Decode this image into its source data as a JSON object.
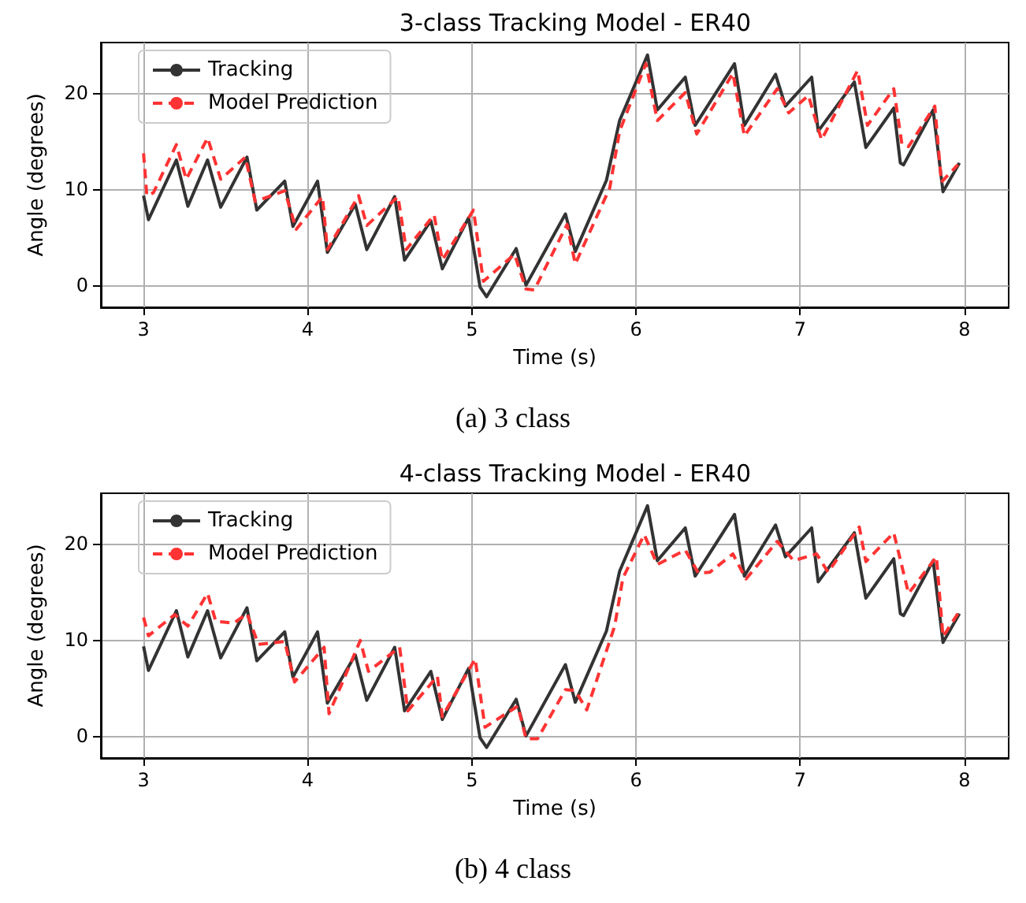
{
  "chart_data": [
    {
      "type": "line",
      "title": "3-class Tracking Model - ER40",
      "xlabel": "Time (s)",
      "ylabel": "Angle (degrees)",
      "annotations": [
        "(a) 3 class"
      ],
      "xlim": [
        2.74,
        8.27
      ],
      "ylim": [
        -2.3,
        25.2
      ],
      "xticks": [
        3,
        4,
        5,
        6,
        7,
        8
      ],
      "yticks": [
        0,
        10,
        20
      ],
      "grid": true,
      "legend": "top left",
      "marker": "none",
      "series": [
        {
          "name": "Tracking",
          "color": "#333333",
          "line_style": "solid",
          "x": [
            3.0,
            3.03,
            3.2,
            3.27,
            3.39,
            3.47,
            3.63,
            3.69,
            3.86,
            3.91,
            4.06,
            4.12,
            4.29,
            4.36,
            4.53,
            4.59,
            4.75,
            4.82,
            4.98,
            5.05,
            5.09,
            5.27,
            5.33,
            5.57,
            5.63,
            5.82,
            5.9,
            6.07,
            6.13,
            6.3,
            6.36,
            6.6,
            6.66,
            6.85,
            6.91,
            7.07,
            7.11,
            7.33,
            7.4,
            7.57,
            7.61,
            7.63,
            7.81,
            7.87,
            7.97
          ],
          "values": [
            9.3,
            6.8,
            13.0,
            8.2,
            13.0,
            8.1,
            13.3,
            7.8,
            10.8,
            6.1,
            10.8,
            3.4,
            8.4,
            3.7,
            9.2,
            2.6,
            6.7,
            1.7,
            7.0,
            -0.2,
            -1.2,
            3.8,
            0.0,
            7.4,
            3.5,
            10.9,
            17.1,
            23.9,
            18.2,
            21.6,
            16.6,
            23.0,
            16.6,
            21.9,
            18.6,
            21.6,
            16.0,
            21.1,
            14.3,
            18.4,
            12.7,
            12.5,
            18.2,
            9.7,
            12.7
          ]
        },
        {
          "name": "Model Prediction",
          "color": "#ff3333",
          "line_style": "dashed",
          "x": [
            3.0,
            3.02,
            3.06,
            3.2,
            3.26,
            3.39,
            3.47,
            3.62,
            3.68,
            3.86,
            3.93,
            4.09,
            4.12,
            4.31,
            4.36,
            4.55,
            4.6,
            4.77,
            4.82,
            5.01,
            5.07,
            5.26,
            5.33,
            5.38,
            5.58,
            5.63,
            5.84,
            5.9,
            6.06,
            6.13,
            6.3,
            6.37,
            6.59,
            6.66,
            6.86,
            6.93,
            7.05,
            7.13,
            7.35,
            7.41,
            7.57,
            7.62,
            7.66,
            7.82,
            7.86,
            7.96
          ],
          "values": [
            13.7,
            9.3,
            9.6,
            14.6,
            11.0,
            15.3,
            11.0,
            13.3,
            8.7,
            9.8,
            5.8,
            9.2,
            3.7,
            9.3,
            6.2,
            9.2,
            3.7,
            7.3,
            2.6,
            7.8,
            0.4,
            3.2,
            -0.4,
            -0.5,
            6.3,
            2.2,
            10.1,
            16.0,
            23.0,
            17.1,
            20.0,
            15.7,
            22.0,
            15.5,
            20.4,
            17.9,
            19.7,
            15.1,
            22.3,
            16.6,
            20.4,
            14.6,
            14.4,
            18.6,
            10.7,
            12.5
          ]
        }
      ]
    },
    {
      "type": "line",
      "title": "4-class Tracking Model - ER40",
      "xlabel": "Time (s)",
      "ylabel": "Angle (degrees)",
      "annotations": [
        "(b) 4 class"
      ],
      "xlim": [
        2.74,
        8.27
      ],
      "ylim": [
        -2.3,
        25.2
      ],
      "xticks": [
        3,
        4,
        5,
        6,
        7,
        8
      ],
      "yticks": [
        0,
        10,
        20
      ],
      "grid": true,
      "legend": "top left",
      "marker": "none",
      "series": [
        {
          "name": "Tracking",
          "color": "#333333",
          "line_style": "solid",
          "x": [
            3.0,
            3.03,
            3.2,
            3.27,
            3.39,
            3.47,
            3.63,
            3.69,
            3.86,
            3.91,
            4.06,
            4.12,
            4.29,
            4.36,
            4.53,
            4.59,
            4.75,
            4.82,
            4.98,
            5.05,
            5.09,
            5.27,
            5.33,
            5.57,
            5.63,
            5.82,
            5.9,
            6.07,
            6.13,
            6.3,
            6.36,
            6.6,
            6.66,
            6.85,
            6.91,
            7.07,
            7.11,
            7.33,
            7.4,
            7.57,
            7.61,
            7.63,
            7.81,
            7.87,
            7.97
          ],
          "values": [
            9.3,
            6.8,
            13.0,
            8.2,
            13.0,
            8.1,
            13.3,
            7.8,
            10.8,
            6.1,
            10.8,
            3.4,
            8.4,
            3.7,
            9.2,
            2.6,
            6.7,
            1.7,
            7.0,
            -0.2,
            -1.2,
            3.8,
            0.0,
            7.4,
            3.5,
            10.9,
            17.1,
            23.9,
            18.2,
            21.6,
            16.6,
            23.0,
            16.6,
            21.9,
            18.6,
            21.6,
            16.0,
            21.1,
            14.3,
            18.4,
            12.7,
            12.5,
            18.2,
            9.7,
            12.7
          ]
        },
        {
          "name": "Model Prediction",
          "color": "#ff3333",
          "line_style": "dashed",
          "x": [
            3.0,
            3.03,
            3.19,
            3.27,
            3.39,
            3.44,
            3.55,
            3.63,
            3.7,
            3.86,
            3.92,
            4.1,
            4.13,
            4.32,
            4.37,
            4.56,
            4.61,
            4.79,
            4.82,
            5.02,
            5.08,
            5.28,
            5.33,
            5.4,
            5.57,
            5.63,
            5.7,
            5.87,
            5.92,
            6.05,
            6.13,
            6.3,
            6.38,
            6.45,
            6.59,
            6.67,
            6.86,
            6.96,
            7.1,
            7.17,
            7.36,
            7.4,
            7.57,
            7.66,
            7.83,
            7.87,
            7.96
          ],
          "values": [
            12.3,
            10.4,
            12.6,
            11.4,
            14.8,
            11.9,
            11.7,
            12.7,
            9.5,
            9.8,
            5.6,
            9.2,
            2.3,
            9.9,
            6.7,
            9.2,
            2.6,
            6.2,
            2.0,
            8.0,
            0.9,
            3.1,
            -0.3,
            -0.3,
            4.8,
            4.7,
            2.7,
            11.4,
            16.4,
            20.9,
            17.8,
            19.3,
            16.9,
            17.0,
            18.9,
            16.3,
            20.2,
            18.2,
            18.9,
            17.0,
            21.7,
            18.1,
            21.1,
            14.8,
            18.6,
            10.3,
            12.7
          ]
        }
      ]
    }
  ]
}
